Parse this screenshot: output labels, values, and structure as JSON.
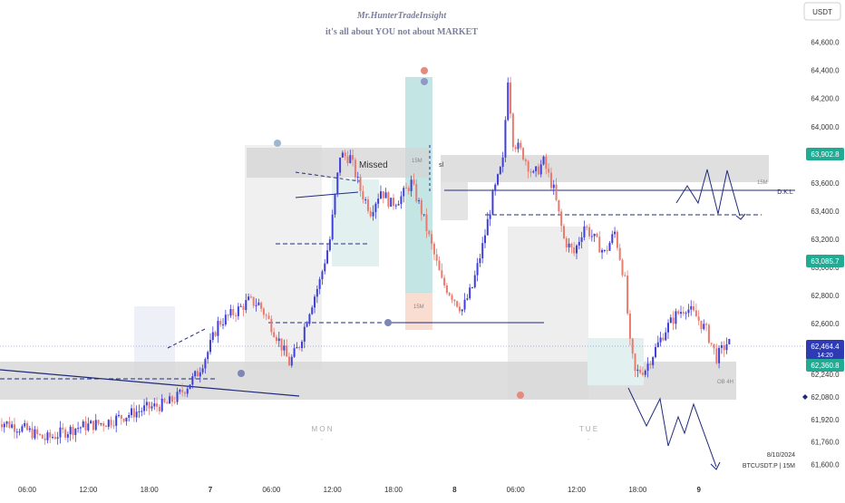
{
  "header": {
    "author": "Mr.HunterTradeInsight",
    "tagline": "it's all about YOU not about MARKET"
  },
  "currency_button": "USDT",
  "annotations": {
    "missed": "Missed",
    "dkl": "D.K.L",
    "tf_15m": "15M",
    "tf_15m_b": "15M",
    "tf_15m_c": "15M",
    "ob_4h": "OB 4H",
    "sl": "sl",
    "day_mon": "M O N",
    "day_tue": "T U E"
  },
  "footer": {
    "date": "8/10/2024",
    "symbol": "BTCUSDT.P | 15M"
  },
  "price_tags": {
    "upper": {
      "value": "63,902.8",
      "color": "#22ab94"
    },
    "mid": {
      "value": "63,085.7",
      "color": "#22ab94"
    },
    "current": {
      "value": "62,464.4",
      "countdown": "14:20",
      "color": "#2e3bb5"
    },
    "lower": {
      "value": "62,360.8",
      "color": "#22ab94"
    }
  },
  "colors": {
    "bull": "#3f3fd8",
    "bear": "#e87a6e",
    "line": "#1f2b7a",
    "zone": "#d9d9d9",
    "teal": "#b9e2e0"
  },
  "chart_data": {
    "type": "candlestick",
    "y_axis": {
      "ticks": [
        "64,800.0",
        "64,600.0",
        "64,400.0",
        "64,200.0",
        "64,000.0",
        "63,800.0",
        "63,600.0",
        "63,400.0",
        "63,200.0",
        "63,000.0",
        "62,800.0",
        "62,600.0",
        "62,240.0",
        "62,080.0",
        "61,920.0",
        "61,760.0",
        "61,600.0"
      ],
      "range": [
        61500,
        64900
      ]
    },
    "x_axis": {
      "ticks": [
        "06:00",
        "12:00",
        "18:00",
        "7",
        "06:00",
        "12:00",
        "18:00",
        "8",
        "06:00",
        "12:00",
        "18:00",
        "9"
      ],
      "range_hours": [
        -3,
        72.5
      ]
    },
    "price_path": [
      [
        -3,
        61920
      ],
      [
        0,
        61850
      ],
      [
        2,
        61780
      ],
      [
        5,
        61860
      ],
      [
        8,
        61900
      ],
      [
        10,
        61950
      ],
      [
        12,
        62000
      ],
      [
        14,
        62030
      ],
      [
        15,
        62080
      ],
      [
        16,
        62160
      ],
      [
        17,
        62250
      ],
      [
        18,
        62400
      ],
      [
        19,
        62600
      ],
      [
        20,
        62650
      ],
      [
        21,
        62700
      ],
      [
        22,
        62760
      ],
      [
        23,
        62740
      ],
      [
        24,
        62620
      ],
      [
        25,
        62480
      ],
      [
        26,
        62320
      ],
      [
        27,
        62450
      ],
      [
        28,
        62700
      ],
      [
        29,
        62900
      ],
      [
        30,
        63200
      ],
      [
        31,
        63800
      ],
      [
        32,
        63780
      ],
      [
        33,
        63550
      ],
      [
        34,
        63400
      ],
      [
        35,
        63550
      ],
      [
        36,
        63450
      ],
      [
        37,
        63500
      ],
      [
        38,
        63600
      ],
      [
        39,
        63400
      ],
      [
        40,
        63150
      ],
      [
        41,
        62900
      ],
      [
        42,
        62800
      ],
      [
        43,
        62700
      ],
      [
        44,
        62860
      ],
      [
        45,
        63150
      ],
      [
        46,
        63500
      ],
      [
        47,
        63750
      ],
      [
        47.5,
        64350
      ],
      [
        48,
        63900
      ],
      [
        49,
        63800
      ],
      [
        50,
        63650
      ],
      [
        51,
        63750
      ],
      [
        52,
        63550
      ],
      [
        53,
        63200
      ],
      [
        54,
        63100
      ],
      [
        55,
        63300
      ],
      [
        56,
        63200
      ],
      [
        57,
        63100
      ],
      [
        58,
        63250
      ],
      [
        59,
        62900
      ],
      [
        59.5,
        62450
      ],
      [
        60,
        62250
      ],
      [
        61,
        62280
      ],
      [
        62,
        62420
      ],
      [
        63,
        62560
      ],
      [
        64,
        62660
      ],
      [
        65,
        62720
      ],
      [
        66,
        62650
      ],
      [
        67,
        62550
      ],
      [
        68,
        62360
      ],
      [
        69,
        62460
      ]
    ],
    "levels": [
      {
        "label": "D.K.L",
        "price": 63600
      },
      {
        "label": "",
        "price": 63430,
        "style": "dashed"
      },
      {
        "label": "",
        "price": 62620
      }
    ],
    "projection": [
      [
        70,
        62100
      ],
      [
        72,
        61820
      ],
      [
        74,
        62000
      ],
      [
        76,
        61720
      ],
      [
        78,
        62040
      ],
      [
        81,
        61600
      ]
    ]
  }
}
